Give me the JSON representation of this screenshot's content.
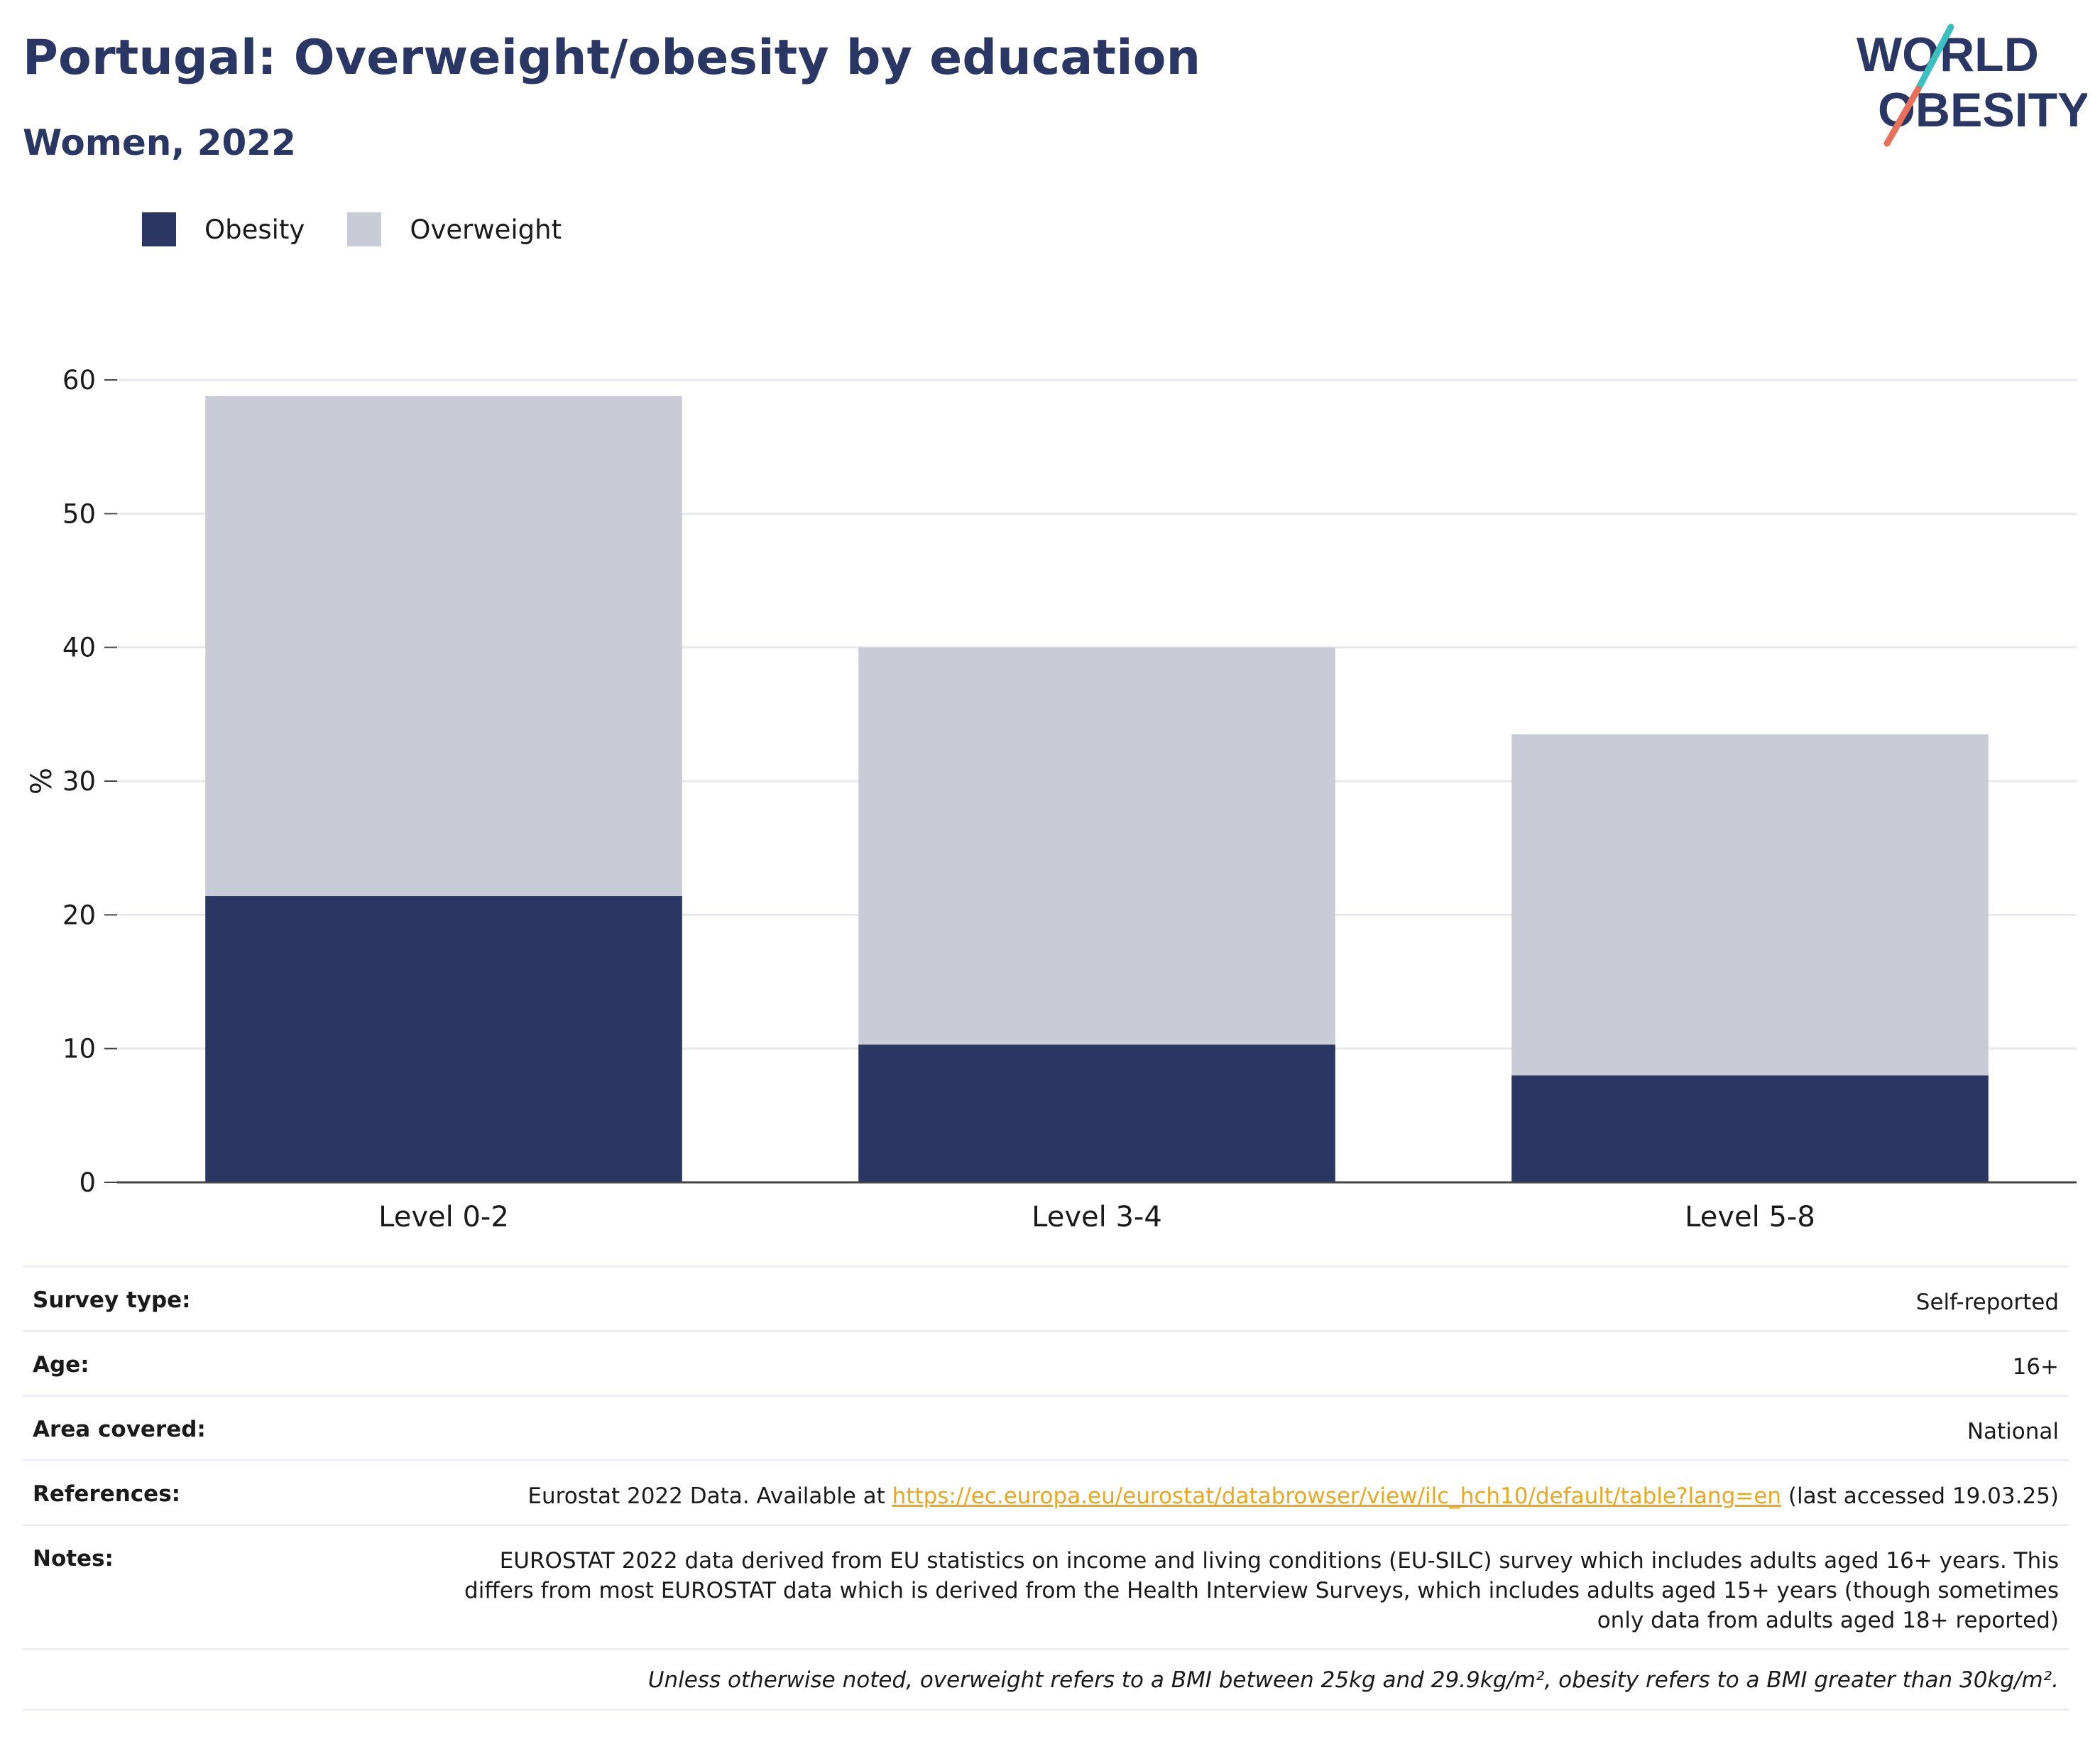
{
  "header": {
    "title": "Portugal: Overweight/obesity by education",
    "subtitle": "Women, 2022"
  },
  "logo": {
    "line1": "WORLD",
    "line2": "OBESITY",
    "brand_color": "#2a3663",
    "accent_teal": "#3bbfbf",
    "accent_coral": "#e8705a"
  },
  "legend": [
    {
      "label": "Obesity",
      "color": "#2a3663"
    },
    {
      "label": "Overweight",
      "color": "#c9cbd6"
    }
  ],
  "chart_data": {
    "type": "bar",
    "stacked": true,
    "categories": [
      "Level 0-2",
      "Level 3-4",
      "Level 5-8"
    ],
    "series": [
      {
        "name": "Obesity",
        "color": "#2a3663",
        "values": [
          21.4,
          10.3,
          8.0
        ]
      },
      {
        "name": "Overweight",
        "color": "#c9cbd6",
        "values": [
          37.4,
          29.7,
          25.5
        ]
      }
    ],
    "ylabel": "%",
    "ylim": [
      0,
      60
    ],
    "yticks": [
      0,
      10,
      20,
      30,
      40,
      50,
      60
    ],
    "grid": true,
    "legend_position": "top-left"
  },
  "info": {
    "survey_type": {
      "label": "Survey type:",
      "value": "Self-reported"
    },
    "age": {
      "label": "Age:",
      "value": "16+"
    },
    "area": {
      "label": "Area covered:",
      "value": "National"
    },
    "references": {
      "label": "References:",
      "prefix": "Eurostat 2022 Data. Available at ",
      "link": "https://ec.europa.eu/eurostat/databrowser/view/ilc_hch10/default/table?lang=en",
      "suffix": " (last accessed 19.03.25)"
    },
    "notes": {
      "label": "Notes:",
      "value": "EUROSTAT 2022 data derived from EU statistics on income and living conditions (EU-SILC) survey which includes adults aged 16+ years. This differs from most EUROSTAT data which is derived from the Health Interview Surveys, which includes adults aged 15+ years (though sometimes only data from adults aged 18+ reported)"
    },
    "footnote": "Unless otherwise noted, overweight refers to a BMI between 25kg and 29.9kg/m², obesity refers to a BMI greater than 30kg/m²."
  }
}
